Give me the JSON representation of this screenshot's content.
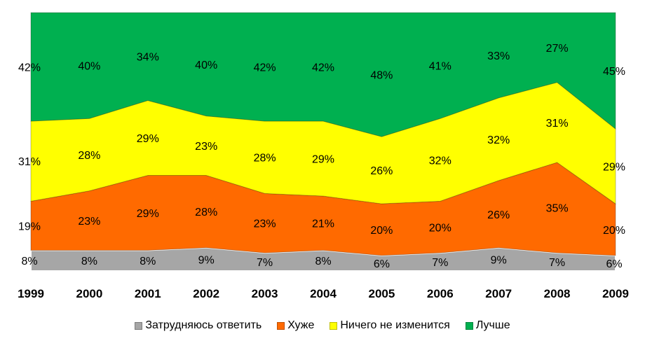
{
  "chart_data": {
    "type": "area",
    "stacked": true,
    "categories": [
      "1999",
      "2000",
      "2001",
      "2002",
      "2003",
      "2004",
      "2005",
      "2006",
      "2007",
      "2008",
      "2009"
    ],
    "series": [
      {
        "name": "Затрудняюсь ответить",
        "color": "#a6a6a6",
        "values": [
          8,
          8,
          8,
          9,
          7,
          8,
          6,
          7,
          9,
          7,
          6
        ]
      },
      {
        "name": "Хуже",
        "color": "#ff6a00",
        "values": [
          19,
          23,
          29,
          28,
          23,
          21,
          20,
          20,
          26,
          35,
          20
        ]
      },
      {
        "name": "Ничего не изменится",
        "color": "#ffff00",
        "values": [
          31,
          28,
          29,
          23,
          28,
          29,
          26,
          32,
          32,
          31,
          29
        ]
      },
      {
        "name": "Лучше",
        "color": "#00b050",
        "values": [
          42,
          40,
          34,
          40,
          42,
          42,
          48,
          41,
          33,
          27,
          45
        ]
      }
    ],
    "value_suffix": "%",
    "ylim": [
      0,
      100
    ],
    "legend_position": "bottom",
    "grid": false,
    "title": "",
    "xlabel": "",
    "ylabel": ""
  }
}
